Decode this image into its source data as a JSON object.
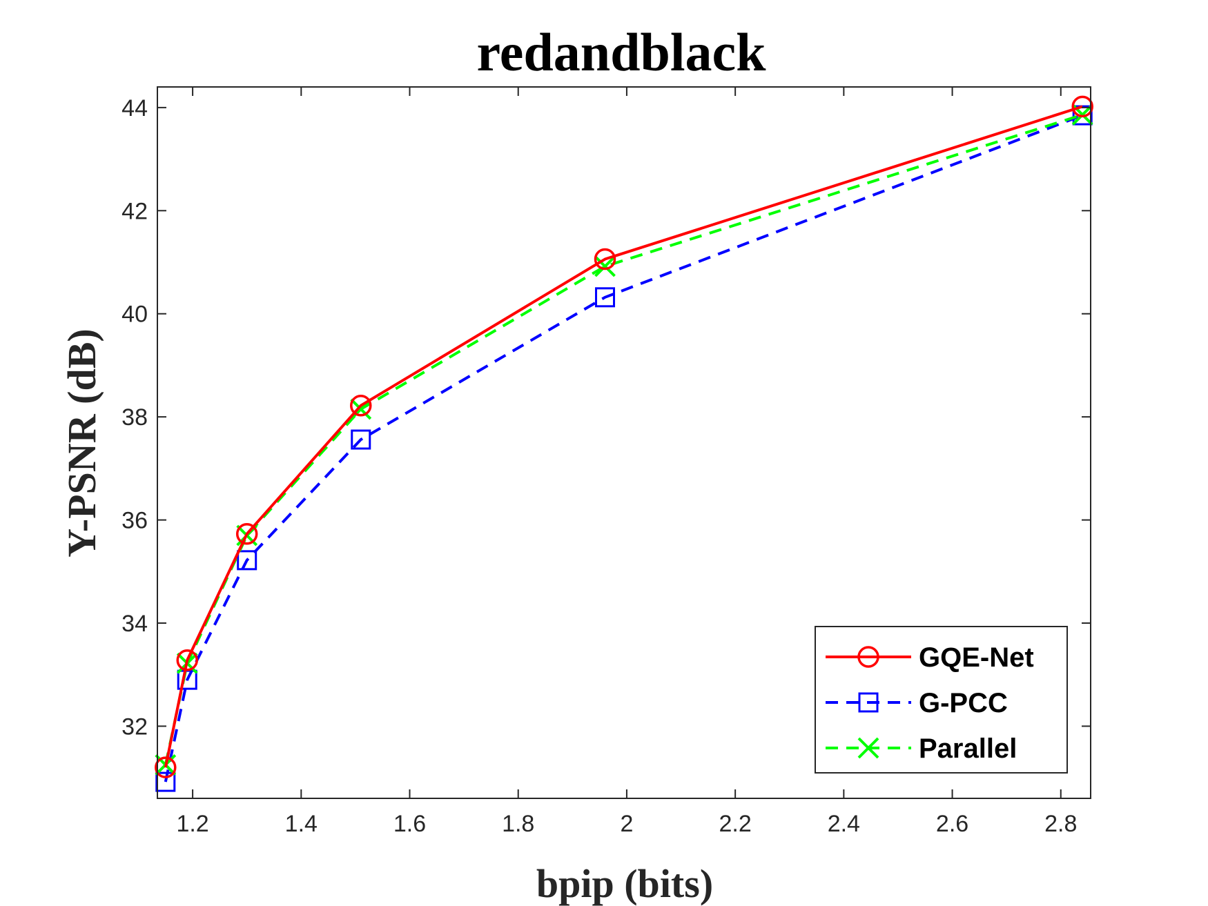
{
  "chart_data": {
    "type": "line",
    "title": "redandblack",
    "xlabel": "bpip (bits)",
    "ylabel": "Y-PSNR (dB)",
    "xlim": [
      1.135,
      2.855
    ],
    "ylim": [
      30.6,
      44.4
    ],
    "xticks": [
      1.2,
      1.4,
      1.6,
      1.8,
      2,
      2.2,
      2.4,
      2.6,
      2.8
    ],
    "xtick_labels": [
      "1.2",
      "1.4",
      "1.6",
      "1.8",
      "2",
      "2.2",
      "2.4",
      "2.6",
      "2.8"
    ],
    "yticks": [
      32,
      34,
      36,
      38,
      40,
      42,
      44
    ],
    "ytick_labels": [
      "32",
      "34",
      "36",
      "38",
      "40",
      "42",
      "44"
    ],
    "grid": false,
    "legend_position": "bottom-right",
    "series": [
      {
        "name": "GQE-Net",
        "color": "#ff0000",
        "line_style": "solid",
        "marker": "circle",
        "x": [
          1.15,
          1.19,
          1.3,
          1.51,
          1.96,
          2.84
        ],
        "y": [
          31.2,
          33.28,
          35.73,
          38.22,
          41.06,
          44.02
        ]
      },
      {
        "name": "G-PCC",
        "color": "#0000ff",
        "line_style": "dashed",
        "marker": "square",
        "x": [
          1.15,
          1.19,
          1.3,
          1.51,
          1.96,
          2.84
        ],
        "y": [
          30.92,
          32.9,
          35.22,
          37.56,
          40.32,
          43.85
        ]
      },
      {
        "name": "Parallel",
        "color": "#00ff00",
        "line_style": "dashed",
        "marker": "x",
        "x": [
          1.15,
          1.19,
          1.3,
          1.51,
          1.96,
          2.84
        ],
        "y": [
          31.25,
          33.22,
          35.7,
          38.15,
          40.92,
          43.86
        ]
      }
    ]
  }
}
